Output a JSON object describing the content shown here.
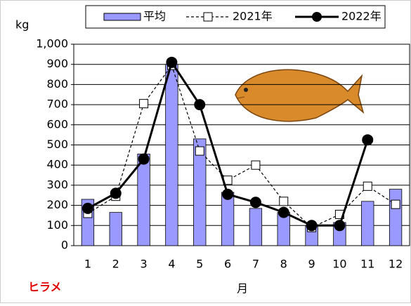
{
  "chart_data": {
    "type": "combo",
    "y_label": "kg",
    "x_label": "月",
    "annotation": "ヒラメ",
    "categories": [
      "1",
      "2",
      "3",
      "4",
      "5",
      "6",
      "7",
      "8",
      "9",
      "10",
      "11",
      "12"
    ],
    "series": [
      {
        "name": "平均",
        "type": "bar",
        "color": "#9999ff",
        "values": [
          230,
          165,
          455,
          900,
          530,
          265,
          185,
          165,
          100,
          115,
          220,
          280
        ]
      },
      {
        "name": "2021年",
        "type": "line",
        "color": "#000000",
        "dashed": true,
        "marker": "square",
        "values": [
          160,
          245,
          705,
          895,
          470,
          325,
          400,
          220,
          90,
          155,
          295,
          205
        ]
      },
      {
        "name": "2022年",
        "type": "line",
        "color": "#000000",
        "dashed": false,
        "marker": "circle",
        "values": [
          185,
          260,
          430,
          910,
          700,
          255,
          215,
          165,
          100,
          100,
          525,
          null
        ]
      }
    ],
    "ylim": [
      0,
      1000
    ],
    "yticks": [
      0,
      100,
      200,
      300,
      400,
      500,
      600,
      700,
      800,
      900,
      {
        "value": 1000,
        "label": "1,000"
      }
    ],
    "grid": true
  }
}
